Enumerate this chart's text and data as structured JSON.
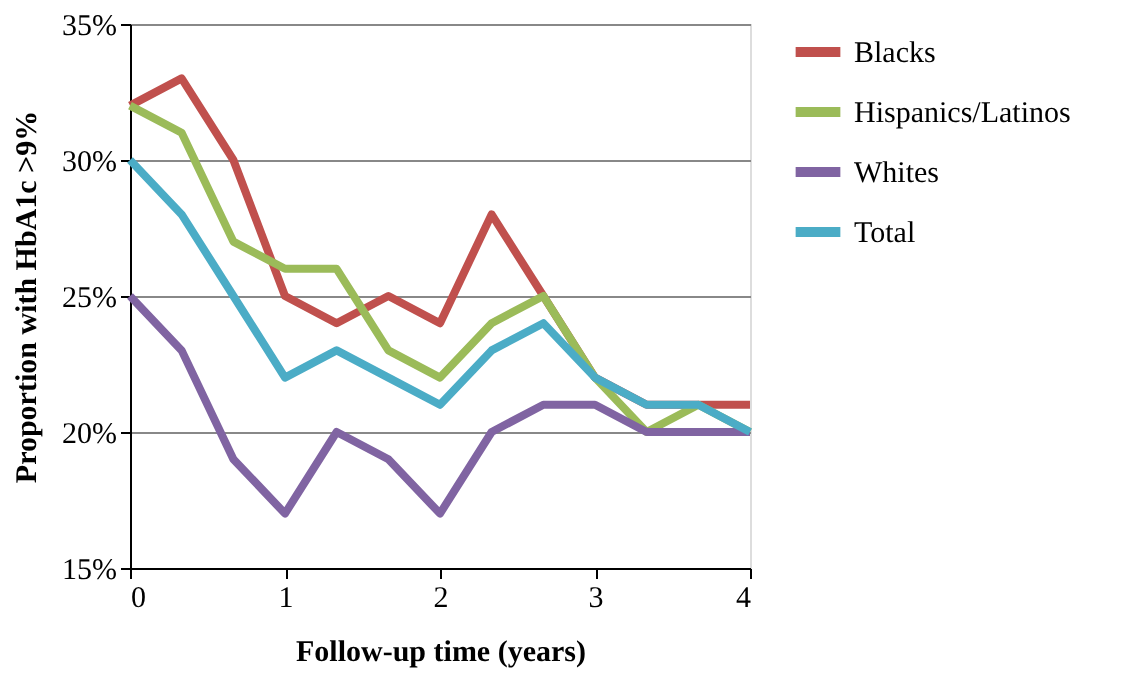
{
  "chart_data": {
    "type": "line",
    "xlabel": "Follow-up time (years)",
    "ylabel": "Proportion with HbA1c >9%",
    "x": [
      0,
      0.333,
      0.667,
      1,
      1.333,
      1.667,
      2,
      2.333,
      2.667,
      3,
      3.333,
      3.667,
      4
    ],
    "series": [
      {
        "name": "Blacks",
        "color": "#c0504d",
        "values": [
          32,
          33,
          30,
          25,
          24,
          25,
          24,
          28,
          25,
          22,
          21,
          21,
          21
        ]
      },
      {
        "name": "Hispanics/Latinos",
        "color": "#9bbb59",
        "values": [
          32,
          31,
          27,
          26,
          26,
          23,
          22,
          24,
          25,
          22,
          20,
          21,
          20
        ]
      },
      {
        "name": "Whites",
        "color": "#8064a2",
        "values": [
          25,
          23,
          19,
          17,
          20,
          19,
          17,
          20,
          21,
          21,
          20,
          20,
          20
        ]
      },
      {
        "name": "Total",
        "color": "#4bacc6",
        "values": [
          30,
          28,
          25,
          22,
          23,
          22,
          21,
          23,
          24,
          22,
          21,
          21,
          20
        ]
      }
    ],
    "xlim": [
      0,
      4
    ],
    "xticks": [
      0,
      1,
      2,
      3,
      4
    ],
    "ylim": [
      15,
      35
    ],
    "yticks": [
      {
        "value": 15,
        "label": "15%"
      },
      {
        "value": 20,
        "label": "20%"
      },
      {
        "value": 25,
        "label": "25%"
      },
      {
        "value": 30,
        "label": "30%"
      },
      {
        "value": 35,
        "label": "35%"
      }
    ],
    "grid": "y",
    "legend": "right",
    "marker": "none",
    "line_style": "solid"
  }
}
